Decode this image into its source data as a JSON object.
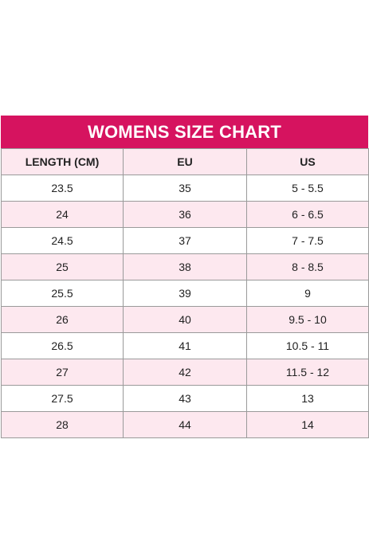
{
  "colors": {
    "header_band": "#d6135f",
    "subheader_band": "#fde8ef",
    "alt_row": "#fde8ef",
    "grid": "#9a9a9a"
  },
  "chart": {
    "title": "WOMENS SIZE CHART",
    "columns": [
      "LENGTH (CM)",
      "EU",
      "US"
    ],
    "rows": [
      [
        "23.5",
        "35",
        "5 - 5.5"
      ],
      [
        "24",
        "36",
        "6 - 6.5"
      ],
      [
        "24.5",
        "37",
        "7 - 7.5"
      ],
      [
        "25",
        "38",
        "8 - 8.5"
      ],
      [
        "25.5",
        "39",
        "9"
      ],
      [
        "26",
        "40",
        "9.5 - 10"
      ],
      [
        "26.5",
        "41",
        "10.5 - 11"
      ],
      [
        "27",
        "42",
        "11.5 - 12"
      ],
      [
        "27.5",
        "43",
        "13"
      ],
      [
        "28",
        "44",
        "14"
      ]
    ]
  }
}
